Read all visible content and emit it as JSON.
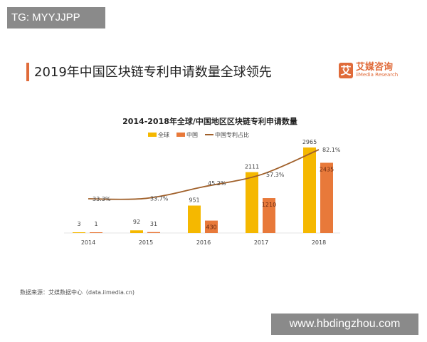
{
  "watermarks": {
    "top": "TG: MYYJJPP",
    "bottom": "www.hbdingzhou.com"
  },
  "page_title": "2019年中国区块链专利申请数量全球领先",
  "logo": {
    "mark": "艾",
    "name_cn": "艾媒咨询",
    "name_en": "iiMedia Research",
    "color": "#e06b3a"
  },
  "source": "数据来源：艾媒数据中心（data.iimedia.cn)",
  "chart_data": {
    "type": "bar",
    "title": "2014-2018年全球/中国地区区块链专利申请数量",
    "categories": [
      "2014",
      "2015",
      "2016",
      "2017",
      "2018"
    ],
    "series": [
      {
        "name": "全球",
        "kind": "bar",
        "color": "#f5b800",
        "values": [
          3,
          92,
          951,
          2111,
          2965
        ],
        "labels": [
          "3",
          "92",
          "951",
          "2111",
          "2965"
        ]
      },
      {
        "name": "中国",
        "kind": "bar",
        "color": "#e8793a",
        "values": [
          1,
          31,
          430,
          1210,
          2435
        ],
        "labels": [
          "1",
          "31",
          "430",
          "1210",
          "2435"
        ]
      },
      {
        "name": "中国专利占比",
        "kind": "line",
        "color": "#a0602a",
        "values": [
          33.3,
          33.7,
          45.2,
          57.3,
          82.1
        ],
        "labels": [
          "33.3%",
          "33.7%",
          "45.2%",
          "57.3%",
          "82.1%"
        ]
      }
    ],
    "legend": "top",
    "grid": false
  }
}
